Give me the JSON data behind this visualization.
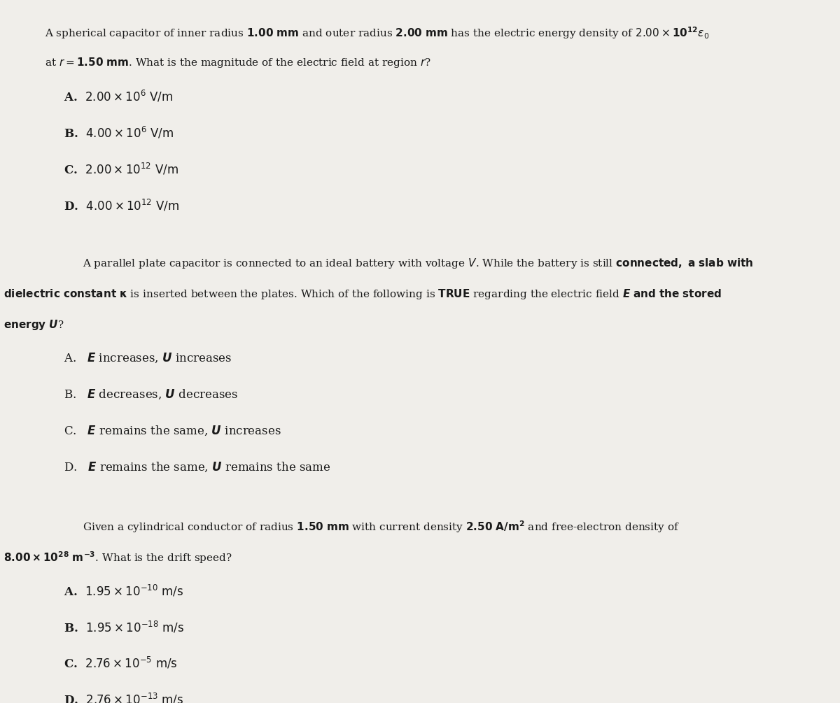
{
  "bg_color": "#f0eeea",
  "text_color": "#1a1a1a",
  "page_width": 12.0,
  "page_height": 10.05,
  "q1": {
    "stem": "A spherical capacitor of inner radius {bold_1}1.00 mm{/bold_1} and outer radius {bold_2}2.00 mm{/bold_2} has the electric energy density of 2.00 × 10¹²ε₀",
    "stem2": "at r = {bold}1.50 mm{/bold}. What is the magnitude of the electric field at region r?",
    "options": [
      "A.  2.00 × 10⁶ V/m",
      "B.  4.00 × 10⁶ V/m",
      "C.  2.00 × 10¹² V/m",
      "D.  4.00 × 10¹² V/m"
    ]
  },
  "q2": {
    "stem": "A parallel plate capacitor is connected to an ideal battery with voltage V. While the battery is still connected, a slab with",
    "stem2": "dielectric constant κ is inserted between the plates. Which of the following is TRUE regarding the electric field E and the stored",
    "stem3": "energy U?",
    "options": [
      "A.   E increases, U increases",
      "B.   E decreases, U decreases",
      "C.   E remains the same, U increases",
      "D.   E remains the same, U remains the same"
    ]
  },
  "q3": {
    "stem": "Given a cylindrical conductor of radius 1.50 mm with current density 2.50 A/m² and free-electron density of",
    "stem2": "8.00 × 10²⁸ m ⁻³. What is the drift speed?",
    "options": [
      "A.  1.95 × 10 ⁻¹⁰ m/s",
      "B.  1.95 × 10 ⁻¹⁸ m/s",
      "C.  2.76 × 10 ⁻⁵ m/s",
      "D.  2.76 × 10 ⁻¹³ m/s"
    ]
  }
}
